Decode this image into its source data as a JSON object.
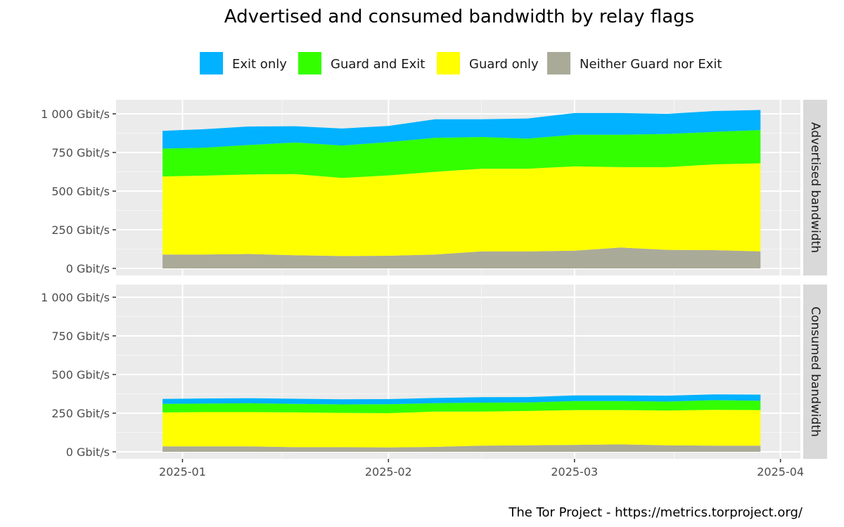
{
  "chart_data": {
    "type": "area",
    "title": "Advertised and consumed bandwidth by relay flags",
    "caption": "The Tor Project - https://metrics.torproject.org/",
    "x_range": [
      "2024-12-22",
      "2025-04-04"
    ],
    "x_ticks": [
      "2025-01",
      "2025-02",
      "2025-03",
      "2025-04"
    ],
    "y_ticks": [
      "0 Gbit/s",
      "250 Gbit/s",
      "500 Gbit/s",
      "750 Gbit/s",
      "1 000 Gbit/s"
    ],
    "ylim": [
      0,
      1050
    ],
    "grid": true,
    "legend_position": "top",
    "colors": {
      "Exit only": "#00b2ff",
      "Guard and Exit": "#33ff00",
      "Guard only": "#ffff00",
      "Neither Guard nor Exit": "#aaaa99"
    },
    "legend": [
      "Exit only",
      "Guard and Exit",
      "Guard only",
      "Neither Guard nor Exit"
    ],
    "stack_order": [
      "Neither Guard nor Exit",
      "Guard only",
      "Guard and Exit",
      "Exit only"
    ],
    "panels": [
      {
        "strip": "Advertised bandwidth",
        "x": [
          "2024-12-29",
          "2025-01-04",
          "2025-01-11",
          "2025-01-18",
          "2025-01-25",
          "2025-02-01",
          "2025-02-08",
          "2025-02-15",
          "2025-02-22",
          "2025-03-01",
          "2025-03-08",
          "2025-03-15",
          "2025-03-22",
          "2025-03-29"
        ],
        "series": [
          {
            "name": "Neither Guard nor Exit",
            "values": [
              90,
              90,
              93,
              85,
              80,
              82,
              90,
              110,
              110,
              115,
              135,
              120,
              118,
              110
            ]
          },
          {
            "name": "Guard only",
            "values": [
              505,
              510,
              515,
              525,
              505,
              520,
              535,
              535,
              535,
              545,
              520,
              535,
              555,
              570
            ]
          },
          {
            "name": "Guard and Exit",
            "values": [
              180,
              180,
              190,
              205,
              210,
              215,
              220,
              205,
              195,
              205,
              210,
              215,
              210,
              215
            ]
          },
          {
            "name": "Exit only",
            "values": [
              115,
              120,
              120,
              105,
              110,
              105,
              120,
              115,
              130,
              140,
              140,
              130,
              135,
              130
            ]
          }
        ]
      },
      {
        "strip": "Consumed bandwidth",
        "x": [
          "2024-12-29",
          "2025-01-04",
          "2025-01-11",
          "2025-01-18",
          "2025-01-25",
          "2025-02-01",
          "2025-02-08",
          "2025-02-15",
          "2025-02-22",
          "2025-03-01",
          "2025-03-08",
          "2025-03-15",
          "2025-03-22",
          "2025-03-29"
        ],
        "series": [
          {
            "name": "Neither Guard nor Exit",
            "values": [
              35,
              35,
              35,
              30,
              30,
              28,
              32,
              40,
              42,
              45,
              48,
              42,
              40,
              40
            ]
          },
          {
            "name": "Guard only",
            "values": [
              220,
              222,
              222,
              225,
              222,
              222,
              228,
              220,
              222,
              225,
              222,
              225,
              232,
              230
            ]
          },
          {
            "name": "Guard and Exit",
            "values": [
              55,
              55,
              57,
              55,
              55,
              58,
              55,
              58,
              55,
              58,
              58,
              58,
              62,
              60
            ]
          },
          {
            "name": "Exit only",
            "values": [
              32,
              33,
              33,
              33,
              33,
              33,
              33,
              35,
              35,
              37,
              37,
              38,
              38,
              40
            ]
          }
        ]
      }
    ]
  }
}
